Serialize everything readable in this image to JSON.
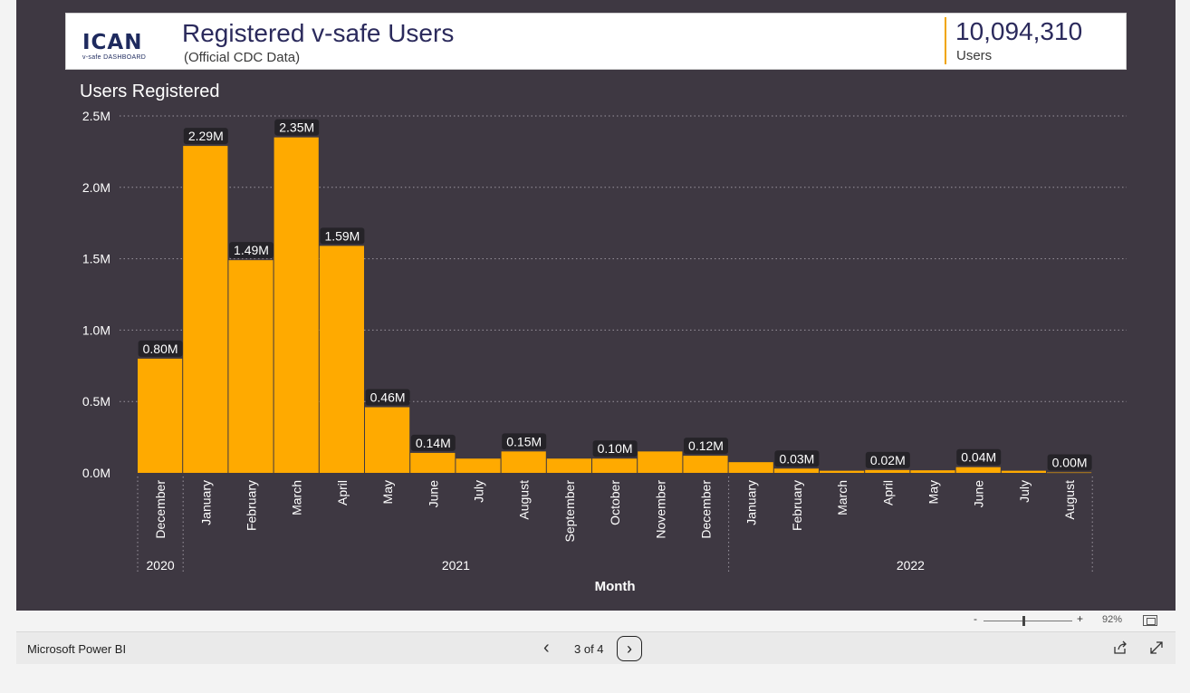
{
  "header": {
    "logo_text": "ICAN",
    "logo_subtext": "v-safe DASHBOARD",
    "title": "Registered v-safe Users",
    "subtitle": "(Official CDC Data)",
    "kpi_value": "10,094,310",
    "kpi_label": "Users",
    "accent_color": "#f0a500"
  },
  "chart_data": {
    "type": "bar",
    "title": "Users Registered",
    "xlabel": "Month",
    "ylabel": "",
    "ylim": [
      0,
      2500000
    ],
    "y_ticks": [
      {
        "value": 0,
        "label": "0.0M"
      },
      {
        "value": 500000,
        "label": "0.5M"
      },
      {
        "value": 1000000,
        "label": "1.0M"
      },
      {
        "value": 1500000,
        "label": "1.5M"
      },
      {
        "value": 2000000,
        "label": "2.0M"
      },
      {
        "value": 2500000,
        "label": "2.5M"
      }
    ],
    "grid": true,
    "bar_color": "#ffaa00",
    "label_bg": "#252328",
    "categories": [
      "December",
      "January",
      "February",
      "March",
      "April",
      "May",
      "June",
      "July",
      "August",
      "September",
      "October",
      "November",
      "December",
      "January",
      "February",
      "March",
      "April",
      "May",
      "June",
      "July",
      "August"
    ],
    "values": [
      800000,
      2290000,
      1490000,
      2350000,
      1590000,
      460000,
      140000,
      100000,
      150000,
      100000,
      100000,
      150000,
      120000,
      75000,
      30000,
      15000,
      20000,
      18000,
      40000,
      15000,
      3000
    ],
    "data_labels": [
      "0.80M",
      "2.29M",
      "1.49M",
      "2.35M",
      "1.59M",
      "0.46M",
      "0.14M",
      "",
      "0.15M",
      "",
      "0.10M",
      "",
      "0.12M",
      "",
      "0.03M",
      "",
      "0.02M",
      "",
      "0.04M",
      "",
      "0.00M"
    ],
    "year_groups": [
      {
        "label": "2020",
        "start": 0,
        "end": 0
      },
      {
        "label": "2021",
        "start": 1,
        "end": 12
      },
      {
        "label": "2022",
        "start": 13,
        "end": 20
      }
    ]
  },
  "footer": {
    "zoom_minus": "-",
    "zoom_plus": "+",
    "zoom_level": "92%",
    "zoom_fraction": 0.45,
    "brand": "Microsoft Power BI",
    "page_indicator": "3 of 4"
  }
}
